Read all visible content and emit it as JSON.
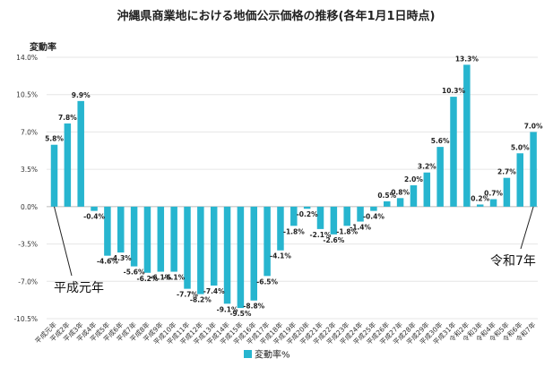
{
  "chart_data": {
    "type": "bar",
    "title": "沖縄県商業地における地価公示価格の推移(各年1月1日時点)",
    "ylabel": "変動率",
    "ylim": [
      -10.5,
      14.0
    ],
    "yticks": [
      "14.0%",
      "10.5%",
      "7.0%",
      "3.5%",
      "0.0%",
      "-3.5%",
      "-7.0%",
      "-10.5%"
    ],
    "ytick_values": [
      14.0,
      10.5,
      7.0,
      3.5,
      0.0,
      -3.5,
      -7.0,
      -10.5
    ],
    "grid": true,
    "legend_position": "bottom",
    "color": "#27b5cf",
    "categories": [
      "平成元年",
      "平成2年",
      "平成3年",
      "平成4年",
      "平成5年",
      "平成6年",
      "平成7年",
      "平成8年",
      "平成9年",
      "平成10年",
      "平成11年",
      "平成12年",
      "平成13年",
      "平成14年",
      "平成15年",
      "平成16年",
      "平成17年",
      "平成18年",
      "平成19年",
      "平成20年",
      "平成21年",
      "平成22年",
      "平成23年",
      "平成24年",
      "平成25年",
      "平成26年",
      "平成27年",
      "平成28年",
      "平成29年",
      "平成30年",
      "平成31年",
      "令和2年",
      "令和3年",
      "令和4年",
      "令和5年",
      "令和6年",
      "令和7年"
    ],
    "series": [
      {
        "name": "変動率%",
        "values": [
          5.8,
          7.8,
          9.9,
          -0.4,
          -4.6,
          -4.3,
          -5.6,
          -6.2,
          -6.1,
          -6.1,
          -7.7,
          -8.2,
          -7.4,
          -9.1,
          -9.5,
          -8.8,
          -6.5,
          -4.1,
          -1.8,
          -0.2,
          -2.1,
          -2.6,
          -1.8,
          -1.4,
          -0.4,
          0.5,
          0.8,
          2.0,
          3.2,
          5.6,
          10.3,
          13.3,
          0.2,
          0.7,
          2.7,
          5.0,
          7.0
        ],
        "labels": [
          "5.8%",
          "7.8%",
          "9.9%",
          "-0.4%",
          "-4.6%",
          "-4.3%",
          "-5.6%",
          "-6.2%",
          "-6.1%",
          "-6.1%",
          "-7.7%",
          "-8.2%",
          "-7.4%",
          "-9.1%",
          "-9.5%",
          "-8.8%",
          "-6.5%",
          "-4.1%",
          "-1.8%",
          "-0.2%",
          "-2.1%",
          "-2.6%",
          "-1.8%",
          "-1.4%",
          "-0.4%",
          "0.5%",
          "0.8%",
          "2.0%",
          "3.2%",
          "5.6%",
          "10.3%",
          "13.3%",
          "0.2%",
          "0.7%",
          "2.7%",
          "5.0%",
          "7.0%"
        ]
      }
    ],
    "annotations": [
      {
        "text": "平成元年",
        "target_index": 0
      },
      {
        "text": "令和7年",
        "target_index": 36
      }
    ]
  }
}
